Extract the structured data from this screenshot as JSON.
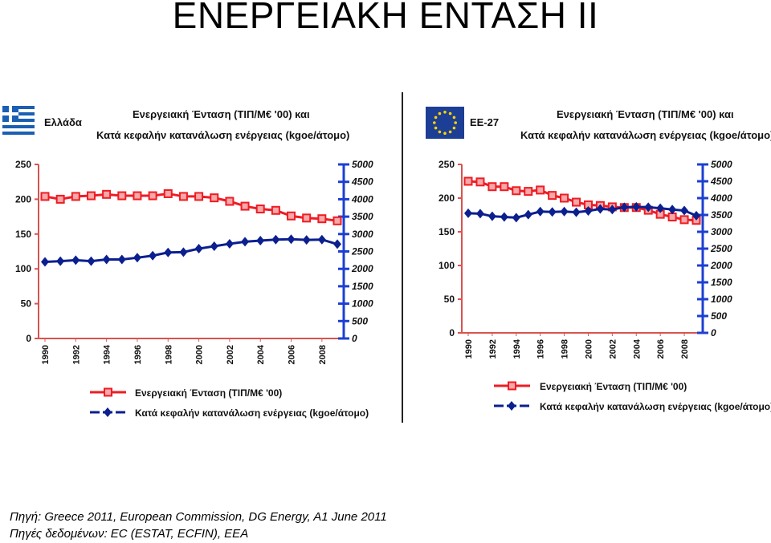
{
  "slide": {
    "title": "ΕΝΕΡΓΕΙΑΚΗ ΕΝΤΑΣΗ ΙΙ",
    "source_line_1": "Πηγή: Greece 2011, European Commission, DG Energy, A1  June 2011",
    "source_line_2": "Πηγές δεδομένων: EC (ESTAT, ECFIN), EEA"
  },
  "colors": {
    "intensity": "#ee1c24",
    "consumption": "#0b1f8f",
    "axis_right": "#1d3fd1"
  },
  "chart_data": [
    {
      "type": "line",
      "region": "Ελλάδα",
      "region_icon": "greece-flag-icon",
      "title_line_1": "Ενεργειακή Ένταση (ΤΙΠ/Μ€ '00) και",
      "title_line_2": "Κατά κεφαλήν κατανάλωση ενέργειας (kgoe/άτομο)",
      "x": [
        1990,
        1991,
        1992,
        1993,
        1994,
        1995,
        1996,
        1997,
        1998,
        1999,
        2000,
        2001,
        2002,
        2003,
        2004,
        2005,
        2006,
        2007,
        2008,
        2009
      ],
      "xticks": [
        "1990",
        "1992",
        "1994",
        "1996",
        "1998",
        "2000",
        "2002",
        "2004",
        "2006",
        "2008"
      ],
      "ylim_left": [
        0,
        250
      ],
      "yticks_left": [
        "0",
        "50",
        "100",
        "150",
        "200",
        "250"
      ],
      "ylim_right": [
        0,
        5000
      ],
      "yticks_right": [
        "0",
        "500",
        "1000",
        "1500",
        "2000",
        "2500",
        "3000",
        "3500",
        "4000",
        "4500",
        "5000"
      ],
      "grid": false,
      "legend_position": "bottom",
      "series": [
        {
          "name": "Ενεργειακή Ένταση (ΤΙΠ/Μ€ '00)",
          "axis": "left",
          "marker": "square",
          "values": [
            204,
            200,
            204,
            205,
            207,
            205,
            205,
            205,
            208,
            204,
            204,
            202,
            197,
            190,
            186,
            184,
            176,
            173,
            172,
            169
          ]
        },
        {
          "name": "Κατά κεφαλήν κατανάλωση ενέργειας (kgoe/άτομο)",
          "axis": "right",
          "marker": "diamond",
          "values": [
            2200,
            2220,
            2250,
            2220,
            2270,
            2270,
            2320,
            2380,
            2470,
            2480,
            2580,
            2650,
            2720,
            2780,
            2810,
            2840,
            2850,
            2830,
            2840,
            2710
          ]
        }
      ]
    },
    {
      "type": "line",
      "region": "ΕΕ-27",
      "region_icon": "eu-flag-icon",
      "title_line_1": "Ενεργειακή Ένταση (ΤΙΠ/Μ€ '00) και",
      "title_line_2": "Κατά κεφαλήν κατανάλωση ενέργειας (kgoe/άτομο)",
      "x": [
        1990,
        1991,
        1992,
        1993,
        1994,
        1995,
        1996,
        1997,
        1998,
        1999,
        2000,
        2001,
        2002,
        2003,
        2004,
        2005,
        2006,
        2007,
        2008,
        2009
      ],
      "xticks": [
        "1990",
        "1992",
        "1994",
        "1996",
        "1998",
        "2000",
        "2002",
        "2004",
        "2006",
        "2008"
      ],
      "ylim_left": [
        0,
        250
      ],
      "yticks_left": [
        "0",
        "50",
        "100",
        "150",
        "200",
        "250"
      ],
      "ylim_right": [
        0,
        5000
      ],
      "yticks_right": [
        "0",
        "500",
        "1000",
        "1500",
        "2000",
        "2500",
        "3000",
        "3500",
        "4000",
        "4500",
        "5000"
      ],
      "grid": false,
      "legend_position": "bottom",
      "series": [
        {
          "name": "Ενεργειακή Ένταση (ΤΙΠ/Μ€ '00)",
          "axis": "left",
          "marker": "square",
          "values": [
            225,
            224,
            217,
            217,
            211,
            210,
            212,
            204,
            200,
            194,
            190,
            189,
            187,
            186,
            186,
            182,
            176,
            172,
            168,
            167
          ]
        },
        {
          "name": "Κατά κεφαλήν κατανάλωση ενέργειας (kgoe/άτομο)",
          "axis": "right",
          "marker": "diamond",
          "values": [
            3550,
            3540,
            3460,
            3440,
            3420,
            3510,
            3600,
            3590,
            3600,
            3580,
            3620,
            3680,
            3660,
            3730,
            3740,
            3730,
            3700,
            3660,
            3630,
            3480
          ]
        }
      ]
    }
  ]
}
